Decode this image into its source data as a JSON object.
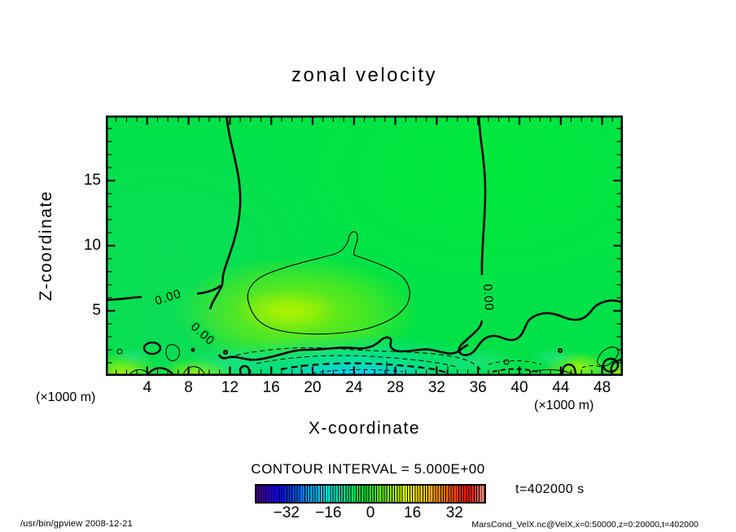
{
  "page": {
    "background": "#ffffff"
  },
  "chart_data": {
    "type": "heatmap",
    "title": "zonal velocity",
    "xlabel": "X-coordinate",
    "ylabel": "Z-coordinate",
    "x_axis_unit": "(×1000 m)",
    "y_axis_unit": "(×1000 m)",
    "x_ticks": [
      4,
      8,
      12,
      16,
      20,
      24,
      28,
      32,
      36,
      40,
      44,
      48
    ],
    "y_ticks": [
      5,
      10,
      15
    ],
    "x_max": 50,
    "y_max": 20,
    "x_major_step": 4,
    "y_major_step": 5,
    "x_minor_step": 1,
    "y_minor_step": 1,
    "contour_interval": 5.0,
    "zero_contour_label": "0.00",
    "legend_text": "CONTOUR INTERVAL = 5.000E+00",
    "time_label": "t=402000 s",
    "field_summary": {
      "description": "Filled-contour zonal velocity field: mostly near-zero to +5 (bright green); a closed +5 (thin) contour region in mid-domain around x=13-40, z=3-9; a shallow negative layer (cyan, dashed contours, minimum near -20) along the bottom between x=14 and x=34; thick 0.00 contours descend from the top near x=11 and x=36 and wander along z=2-6.",
      "positive_interior_level": 5,
      "negative_min_level": -20
    },
    "colorbar": {
      "min": -44,
      "max": 44,
      "cell_interval": 1,
      "tick_values": [
        -32,
        -16,
        0,
        16,
        32
      ],
      "tick_labels": [
        "−32",
        "−16",
        "0",
        "16",
        "32"
      ]
    }
  },
  "footer": {
    "left": "/usr/bin/gpview  2008-12-21",
    "right": "MarsCond_VelX.nc@VelX,x=0:50000,z=0:20000,t=402000"
  },
  "colors": {
    "field_green": "#00e148",
    "field_yellow_green": "#9cf000",
    "field_cyan": "#00dcc0",
    "field_deep_cyan": "#00d4f4",
    "contour": "#000000"
  }
}
